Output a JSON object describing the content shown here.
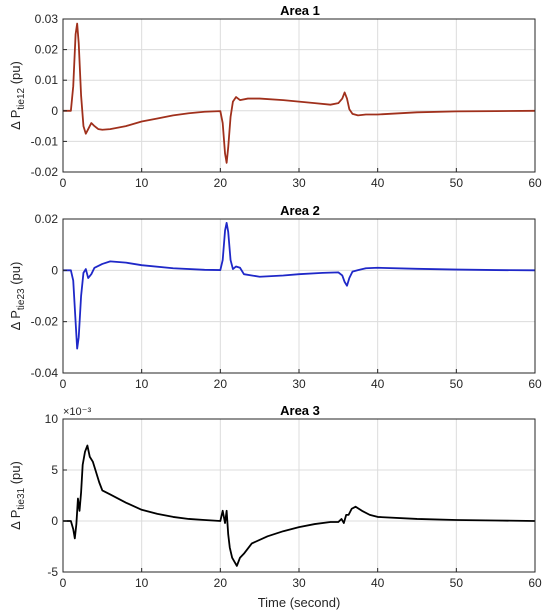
{
  "chart_data": [
    {
      "type": "line",
      "title": "Area 1",
      "ylabel": {
        "prefix": "Δ P",
        "sub": "tie12",
        "suffix": " (pu)"
      },
      "xlabel": "",
      "xlim": [
        0,
        60
      ],
      "ylim": [
        -0.02,
        0.03
      ],
      "xticks": [
        0,
        10,
        20,
        30,
        40,
        50,
        60
      ],
      "yticks": [
        -0.02,
        -0.01,
        0,
        0.01,
        0.02,
        0.03
      ],
      "ytick_labels": [
        "-0.02",
        "-0.01",
        "0",
        "0.01",
        "0.02",
        "0.03"
      ],
      "exponent": "",
      "grid": true,
      "color": "#a0301c",
      "x": [
        0,
        1.0,
        1.3,
        1.6,
        1.8,
        2.0,
        2.3,
        2.6,
        2.9,
        3.2,
        3.6,
        4.0,
        4.5,
        5.0,
        6.0,
        8.0,
        10.0,
        12.0,
        14.0,
        16.0,
        18.0,
        20.0,
        20.3,
        20.6,
        20.8,
        21.0,
        21.3,
        21.6,
        22.0,
        22.5,
        23.5,
        25.0,
        28.0,
        30.0,
        32.0,
        34.0,
        35.0,
        35.5,
        35.8,
        36.1,
        36.4,
        36.8,
        37.5,
        38.5,
        40.0,
        45.0,
        50.0,
        55.0,
        60.0
      ],
      "y": [
        0,
        0,
        0.008,
        0.025,
        0.0285,
        0.022,
        0.005,
        -0.005,
        -0.0075,
        -0.006,
        -0.004,
        -0.005,
        -0.006,
        -0.0062,
        -0.006,
        -0.005,
        -0.0035,
        -0.0025,
        -0.0015,
        -0.0008,
        -0.0003,
        -0.0001,
        -0.004,
        -0.014,
        -0.017,
        -0.012,
        -0.002,
        0.003,
        0.0045,
        0.0035,
        0.004,
        0.004,
        0.0035,
        0.003,
        0.0025,
        0.002,
        0.0025,
        0.004,
        0.006,
        0.004,
        0.0005,
        -0.001,
        -0.0015,
        -0.0012,
        -0.0012,
        -0.0005,
        -0.0002,
        -0.0001,
        0
      ]
    },
    {
      "type": "line",
      "title": "Area 2",
      "ylabel": {
        "prefix": "Δ P",
        "sub": "tie23",
        "suffix": " (pu)"
      },
      "xlabel": "",
      "xlim": [
        0,
        60
      ],
      "ylim": [
        -0.04,
        0.02
      ],
      "xticks": [
        0,
        10,
        20,
        30,
        40,
        50,
        60
      ],
      "yticks": [
        -0.04,
        -0.02,
        0,
        0.02
      ],
      "ytick_labels": [
        "-0.04",
        "-0.02",
        "0",
        "0.02"
      ],
      "exponent": "",
      "grid": true,
      "color": "#1f28c8",
      "x": [
        0,
        1.0,
        1.3,
        1.6,
        1.8,
        2.0,
        2.3,
        2.6,
        2.9,
        3.2,
        3.6,
        4.0,
        5.0,
        6.0,
        8.0,
        10.0,
        14.0,
        18.0,
        20.0,
        20.3,
        20.6,
        20.8,
        21.0,
        21.3,
        21.6,
        22.0,
        22.5,
        23.0,
        24.0,
        25.0,
        28.0,
        30.0,
        33.0,
        35.0,
        35.5,
        35.8,
        36.1,
        36.4,
        36.8,
        37.5,
        38.5,
        40.0,
        45.0,
        50.0,
        55.0,
        60.0
      ],
      "y": [
        0,
        0,
        -0.004,
        -0.02,
        -0.0305,
        -0.026,
        -0.01,
        -0.001,
        0.0005,
        -0.003,
        -0.0015,
        0.001,
        0.0025,
        0.0035,
        0.003,
        0.002,
        0.0008,
        0.0002,
        0.0001,
        0.004,
        0.0155,
        0.0185,
        0.015,
        0.004,
        0.0005,
        0.0015,
        0.001,
        -0.0015,
        -0.002,
        -0.0025,
        -0.002,
        -0.0015,
        -0.001,
        -0.0008,
        -0.002,
        -0.0045,
        -0.006,
        -0.003,
        -0.0005,
        0.0001,
        0.0008,
        0.001,
        0.0006,
        0.0003,
        0.0001,
        0
      ]
    },
    {
      "type": "line",
      "title": "Area 3",
      "ylabel": {
        "prefix": "Δ P",
        "sub": "tie31",
        "suffix": " (pu)"
      },
      "xlabel": "Time (second)",
      "xlim": [
        0,
        60
      ],
      "ylim": [
        -5,
        10
      ],
      "xticks": [
        0,
        10,
        20,
        30,
        40,
        50,
        60
      ],
      "yticks": [
        -5,
        0,
        5,
        10
      ],
      "ytick_labels": [
        "-5",
        "0",
        "5",
        "10"
      ],
      "exponent": "×10⁻³",
      "grid": true,
      "color": "#000000",
      "x": [
        0,
        1.0,
        1.3,
        1.5,
        1.7,
        1.9,
        2.1,
        2.3,
        2.5,
        2.8,
        3.1,
        3.4,
        3.8,
        4.2,
        4.6,
        5.0,
        6.0,
        8.0,
        10.0,
        12.0,
        14.0,
        16.0,
        18.0,
        20.0,
        20.3,
        20.6,
        20.8,
        21.0,
        21.2,
        21.5,
        21.8,
        22.1,
        22.5,
        23.0,
        24.0,
        26.0,
        28.0,
        30.0,
        32.0,
        34.0,
        35.0,
        35.4,
        35.7,
        36.0,
        36.3,
        36.7,
        37.2,
        38.0,
        39.0,
        40.0,
        45.0,
        50.0,
        55.0,
        60.0
      ],
      "y": [
        0,
        0,
        -0.8,
        -1.7,
        -0.3,
        2.2,
        1.0,
        2.8,
        5.5,
        6.8,
        7.4,
        6.3,
        5.8,
        4.8,
        3.8,
        3.0,
        2.6,
        1.8,
        1.1,
        0.7,
        0.4,
        0.2,
        0.1,
        0.0,
        1.0,
        -0.2,
        1.0,
        -1.3,
        -2.6,
        -3.6,
        -4.0,
        -4.4,
        -3.6,
        -3.2,
        -2.2,
        -1.5,
        -1.0,
        -0.6,
        -0.3,
        -0.1,
        -0.1,
        0.2,
        -0.2,
        0.6,
        0.6,
        1.2,
        1.4,
        1.0,
        0.6,
        0.4,
        0.2,
        0.1,
        0.05,
        0
      ]
    }
  ]
}
